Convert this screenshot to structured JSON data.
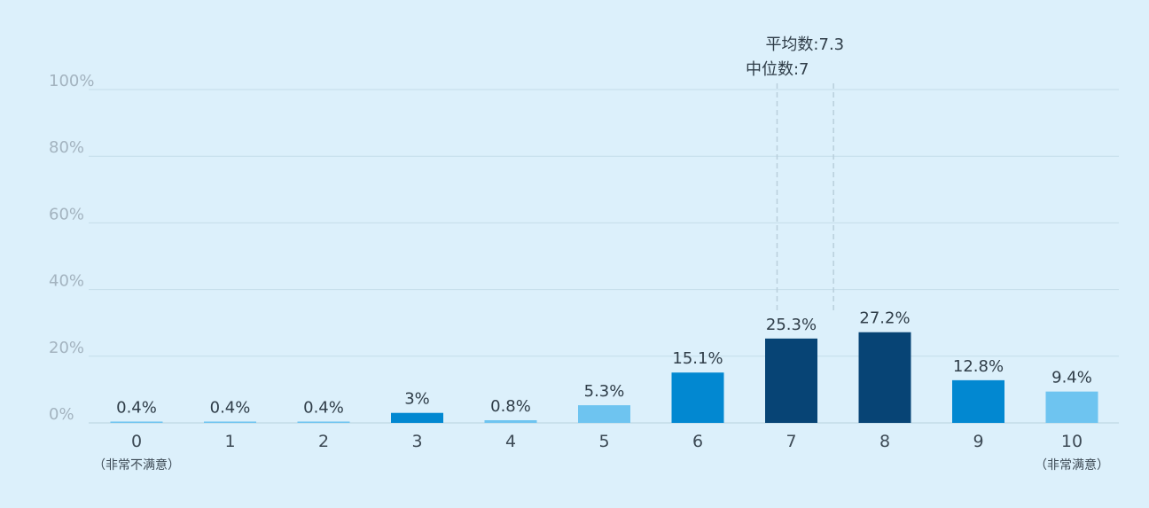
{
  "chart_data": {
    "type": "bar",
    "categories": [
      "0",
      "1",
      "2",
      "3",
      "4",
      "5",
      "6",
      "7",
      "8",
      "9",
      "10"
    ],
    "category_sublabels": {
      "0": "（非常不满意）",
      "10": "（非常满意）"
    },
    "values": [
      0.4,
      0.4,
      0.4,
      3,
      0.8,
      5.3,
      15.1,
      25.3,
      27.2,
      12.8,
      9.4
    ],
    "value_labels": [
      "0.4%",
      "0.4%",
      "0.4%",
      "3%",
      "0.8%",
      "5.3%",
      "15.1%",
      "25.3%",
      "27.2%",
      "12.8%",
      "9.4%"
    ],
    "bar_colors": [
      "#6ec4f0",
      "#6ec4f0",
      "#6ec4f0",
      "#0288d1",
      "#6ec4f0",
      "#6ec4f0",
      "#0288d1",
      "#074475",
      "#074475",
      "#0288d1",
      "#6ec4f0"
    ],
    "ylim": [
      0,
      100
    ],
    "yticks": [
      0,
      20,
      40,
      60,
      80,
      100
    ],
    "ytick_labels": [
      "0%",
      "20%",
      "40%",
      "60%",
      "80%",
      "100%"
    ],
    "grid": true,
    "reference_lines": [
      {
        "label": "平均数:7.3",
        "x": 7.3
      },
      {
        "label": "中位数:7",
        "x": 7
      }
    ]
  }
}
